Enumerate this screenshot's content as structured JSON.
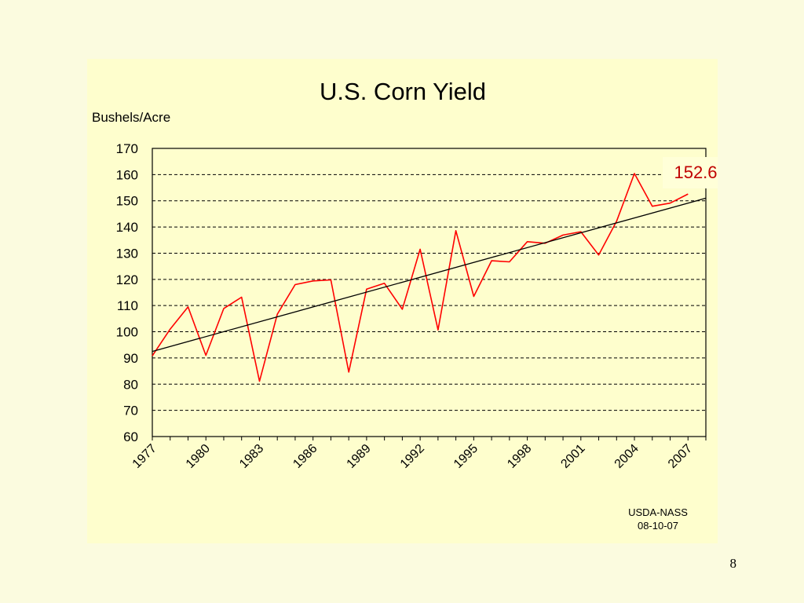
{
  "slide": {
    "page_number": "8"
  },
  "chart_data": {
    "type": "line",
    "title": "U.S. Corn Yield",
    "ylabel": "Bushels/Acre",
    "xlabel": "",
    "ylim": [
      60,
      170
    ],
    "yticks": [
      60,
      70,
      80,
      90,
      100,
      110,
      120,
      130,
      140,
      150,
      160,
      170
    ],
    "xlim": [
      1977,
      2008
    ],
    "xticks": [
      "1977",
      "1980",
      "1983",
      "1986",
      "1989",
      "1992",
      "1995",
      "1998",
      "2001",
      "2004",
      "2007"
    ],
    "grid": "horizontal dashed",
    "series": [
      {
        "color": "#ff0000",
        "x": [
          1977,
          1978,
          1979,
          1980,
          1981,
          1982,
          1983,
          1984,
          1985,
          1986,
          1987,
          1988,
          1989,
          1990,
          1991,
          1992,
          1993,
          1994,
          1995,
          1996,
          1997,
          1998,
          1999,
          2000,
          2001,
          2002,
          2003,
          2004,
          2005,
          2006,
          2007
        ],
        "values": [
          90.8,
          101.0,
          109.5,
          91.0,
          108.9,
          113.2,
          81.1,
          106.7,
          118.0,
          119.4,
          119.8,
          84.6,
          116.3,
          118.5,
          108.6,
          131.5,
          100.7,
          138.6,
          113.5,
          127.1,
          126.7,
          134.4,
          133.8,
          136.9,
          138.2,
          129.3,
          142.2,
          160.4,
          147.9,
          149.1,
          152.6
        ]
      },
      {
        "color": "#000000",
        "x": [
          1977,
          2008
        ],
        "values": [
          92.5,
          151.0
        ]
      }
    ],
    "annotations": [
      {
        "text": "152.6",
        "color": "#c00000",
        "position": "top-right"
      }
    ],
    "source_note": [
      "USDA-NASS",
      "08-10-07"
    ]
  },
  "colors": {
    "background": "#fbfbdf",
    "panel": "#fefecd",
    "data_line": "#ff0000",
    "trend_line": "#000000",
    "callout_text": "#c00000"
  }
}
